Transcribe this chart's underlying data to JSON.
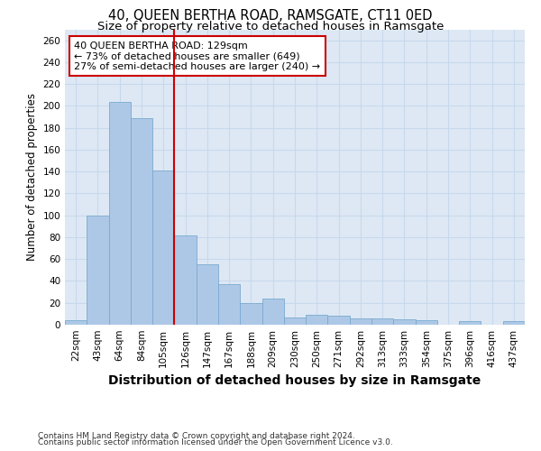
{
  "title": "40, QUEEN BERTHA ROAD, RAMSGATE, CT11 0ED",
  "subtitle": "Size of property relative to detached houses in Ramsgate",
  "xlabel": "Distribution of detached houses by size in Ramsgate",
  "ylabel": "Number of detached properties",
  "categories": [
    "22sqm",
    "43sqm",
    "64sqm",
    "84sqm",
    "105sqm",
    "126sqm",
    "147sqm",
    "167sqm",
    "188sqm",
    "209sqm",
    "230sqm",
    "250sqm",
    "271sqm",
    "292sqm",
    "313sqm",
    "333sqm",
    "354sqm",
    "375sqm",
    "396sqm",
    "416sqm",
    "437sqm"
  ],
  "values": [
    4,
    100,
    204,
    189,
    141,
    82,
    55,
    37,
    20,
    24,
    7,
    9,
    8,
    6,
    6,
    5,
    4,
    0,
    3,
    0,
    3
  ],
  "bar_color": "#adc8e6",
  "bar_edge_color": "#7aaad0",
  "vline_index": 5,
  "vline_color": "#cc0000",
  "annotation_text": "40 QUEEN BERTHA ROAD: 129sqm\n← 73% of detached houses are smaller (649)\n27% of semi-detached houses are larger (240) →",
  "annotation_box_color": "#cc0000",
  "ylim": [
    0,
    270
  ],
  "yticks": [
    0,
    20,
    40,
    60,
    80,
    100,
    120,
    140,
    160,
    180,
    200,
    220,
    240,
    260
  ],
  "grid_color": "#c8d8ec",
  "bg_color": "#dde8f4",
  "footer_line1": "Contains HM Land Registry data © Crown copyright and database right 2024.",
  "footer_line2": "Contains public sector information licensed under the Open Government Licence v3.0.",
  "title_fontsize": 10.5,
  "subtitle_fontsize": 9.5,
  "xlabel_fontsize": 10,
  "ylabel_fontsize": 8.5,
  "tick_fontsize": 7.5,
  "annotation_fontsize": 8,
  "footer_fontsize": 6.5
}
